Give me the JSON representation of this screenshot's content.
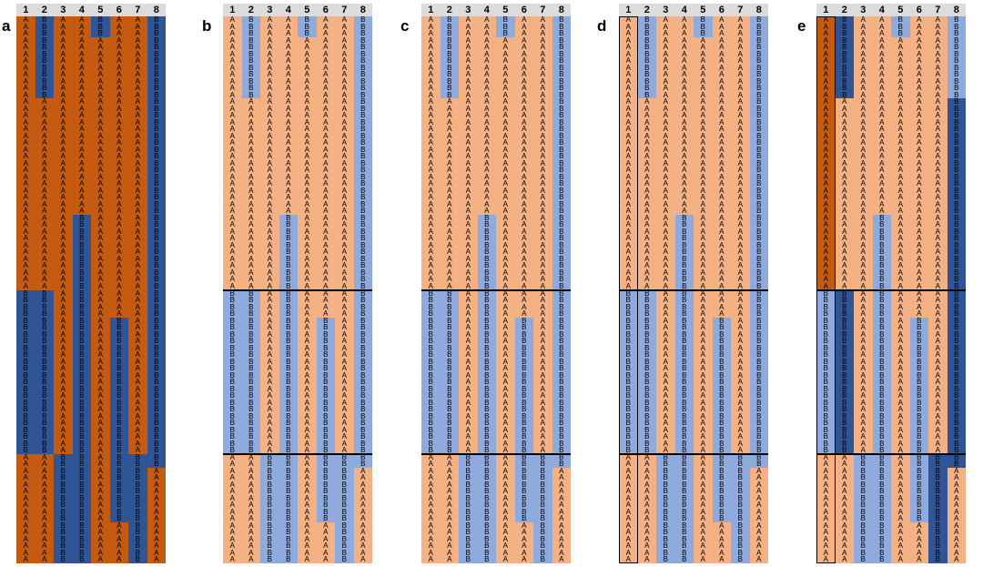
{
  "columns": [
    "1",
    "2",
    "3",
    "4",
    "5",
    "6",
    "7",
    "8"
  ],
  "row_count": 80,
  "block_boundaries_after_rows": [
    39,
    63
  ],
  "colors": {
    "A_dark": "#c55a11",
    "B_dark": "#2f5597",
    "A_light": "#f4b183",
    "B_light": "#8faadc",
    "header_bg": "#dcdcdc"
  },
  "legend": {
    "A": "A",
    "B": "B"
  },
  "column_runs": [
    [
      [
        "A",
        40
      ],
      [
        "B",
        24
      ],
      [
        "A",
        16
      ]
    ],
    [
      [
        "B",
        12
      ],
      [
        "A",
        28
      ],
      [
        "B",
        24
      ],
      [
        "A",
        16
      ]
    ],
    [
      [
        "A",
        64
      ],
      [
        "B",
        16
      ]
    ],
    [
      [
        "A",
        29
      ],
      [
        "B",
        51
      ]
    ],
    [
      [
        "B",
        3
      ],
      [
        "A",
        77
      ]
    ],
    [
      [
        "A",
        44
      ],
      [
        "B",
        30
      ],
      [
        "A",
        6
      ]
    ],
    [
      [
        "A",
        64
      ],
      [
        "B",
        16
      ]
    ],
    [
      [
        "B",
        66
      ],
      [
        "A",
        14
      ]
    ]
  ],
  "panels": [
    {
      "label": "a",
      "has_block_lines": false,
      "dark_columns": "all",
      "boxed_columns": [],
      "dark_override": []
    },
    {
      "label": "b",
      "has_block_lines": true,
      "dark_columns": [],
      "boxed_columns": [],
      "dark_override": []
    },
    {
      "label": "c",
      "has_block_lines": true,
      "dark_columns": [],
      "boxed_columns": [],
      "dark_override": []
    },
    {
      "label": "d",
      "has_block_lines": true,
      "dark_columns": [],
      "boxed_columns": [
        1
      ],
      "dark_override": []
    },
    {
      "label": "e",
      "has_block_lines": true,
      "dark_columns": [],
      "boxed_columns": [
        1
      ],
      "dark_override": [
        {
          "col": 1,
          "from": 0,
          "to": 39
        },
        {
          "col": 2,
          "from": 0,
          "to": 11
        },
        {
          "col": 2,
          "from": 40,
          "to": 63
        },
        {
          "col": 8,
          "from": 12,
          "to": 65
        },
        {
          "col": 7,
          "from": 64,
          "to": 79
        }
      ]
    }
  ]
}
